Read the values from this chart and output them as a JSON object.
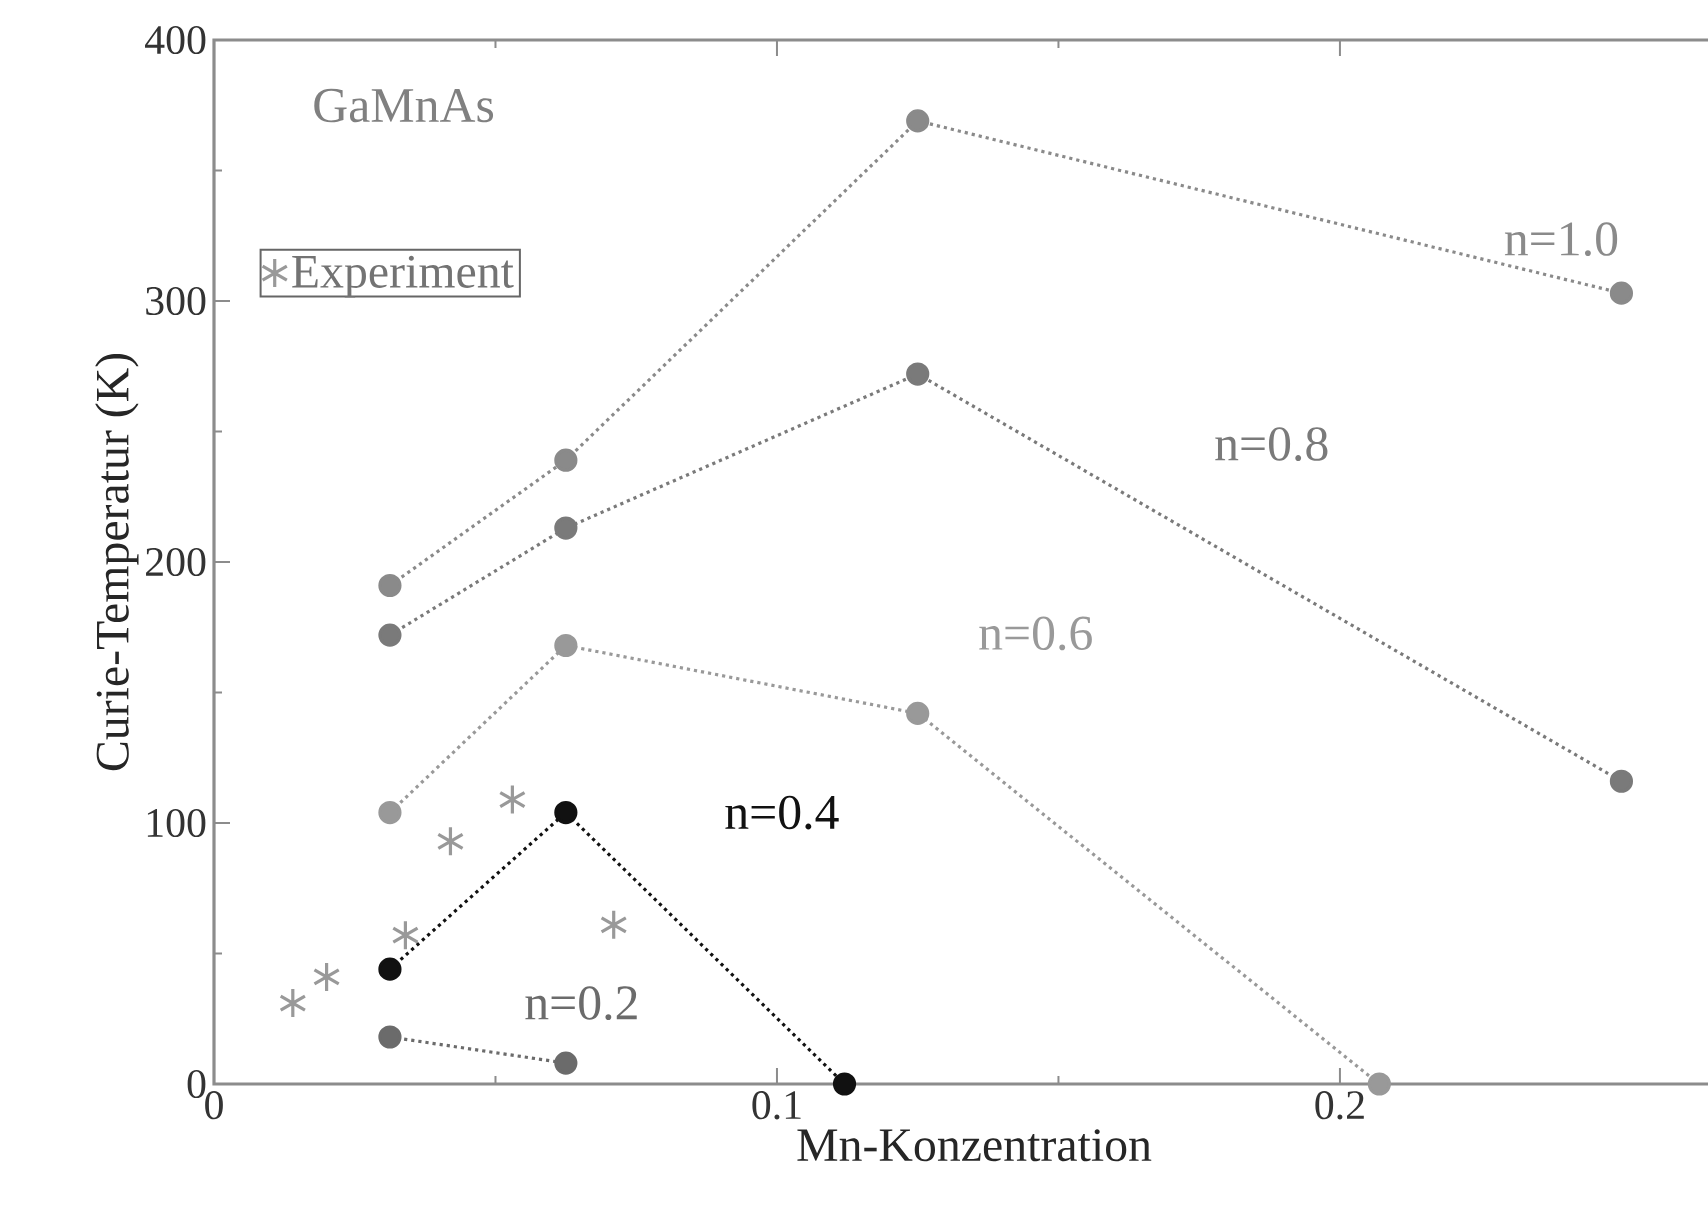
{
  "chart_data": {
    "type": "line",
    "xlabel": "Mn-Konzentration",
    "ylabel": "Curie-Temperatur (K)",
    "xlim": [
      0,
      0.27
    ],
    "ylim": [
      0,
      400
    ],
    "xticks": [
      0,
      0.1,
      0.2
    ],
    "yticks": [
      0,
      100,
      200,
      300,
      400
    ],
    "grid": false,
    "legend": "top left",
    "marker": "circle",
    "line_style": "dotted",
    "series": [
      {
        "name": "n=1.0",
        "color": "#8a8a8a",
        "x": [
          0.03125,
          0.0625,
          0.125,
          0.25
        ],
        "values": [
          191,
          239,
          369,
          303
        ]
      },
      {
        "name": "n=0.8",
        "color": "#7a7a7a",
        "x": [
          0.03125,
          0.0625,
          0.125,
          0.25
        ],
        "values": [
          172,
          213,
          272,
          116
        ]
      },
      {
        "name": "n=0.6",
        "color": "#999999",
        "x": [
          0.03125,
          0.0625,
          0.125,
          0.207
        ],
        "values": [
          104,
          168,
          142,
          0
        ]
      },
      {
        "name": "n=0.4",
        "color": "#111111",
        "x": [
          0.03125,
          0.0625,
          0.112
        ],
        "values": [
          44,
          104,
          0
        ]
      },
      {
        "name": "n=0.2",
        "color": "#6b6b6b",
        "x": [
          0.03125,
          0.0625
        ],
        "values": [
          18,
          8
        ]
      },
      {
        "name": "Experiment",
        "type": "scatter",
        "marker": "cross",
        "color": "#999999",
        "x": [
          0.014,
          0.02,
          0.034,
          0.042,
          0.053,
          0.071
        ],
        "values": [
          31,
          41,
          57,
          93,
          109,
          61
        ]
      }
    ],
    "annotations": [
      "GaMnAs"
    ]
  }
}
